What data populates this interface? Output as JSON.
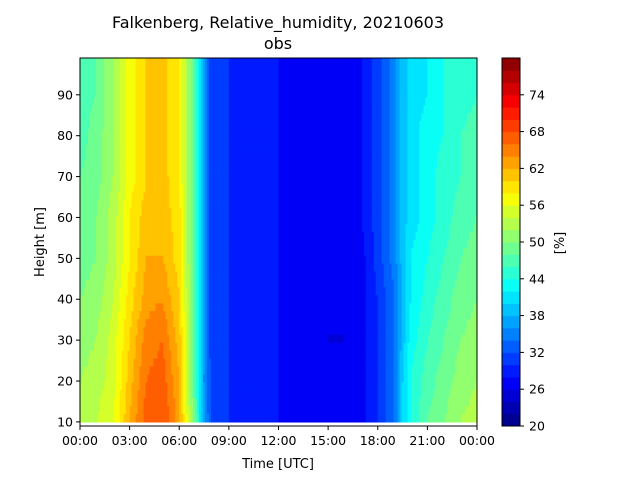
{
  "chart_data": {
    "type": "heatmap",
    "title": "Falkenberg, Relative_humidity, 20210603",
    "subtitle": "obs",
    "xlabel": "Time [UTC]",
    "ylabel": "Height [m]",
    "colorbar_label": "[%]",
    "colormap": "jet",
    "x_tick_labels": [
      "00:00",
      "03:00",
      "06:00",
      "09:00",
      "12:00",
      "15:00",
      "18:00",
      "21:00",
      "00:00"
    ],
    "x_range_hours": [
      0,
      24
    ],
    "y_ticks": [
      10,
      20,
      30,
      40,
      50,
      60,
      70,
      80,
      90
    ],
    "y_range": [
      9,
      99
    ],
    "colorbar_ticks": [
      20,
      26,
      32,
      38,
      44,
      50,
      56,
      62,
      68,
      74
    ],
    "colorbar_range": [
      20,
      80
    ],
    "heights": [
      10,
      20,
      30,
      40,
      50,
      60,
      70,
      80,
      90,
      99
    ],
    "times_hours": [
      0,
      1,
      2,
      3,
      4,
      5,
      6,
      7,
      7.5,
      8,
      9,
      10,
      11,
      12,
      13,
      14,
      15,
      16,
      17,
      18,
      19,
      19.5,
      20,
      21,
      22,
      23,
      24
    ],
    "values": [
      [
        53,
        54,
        56,
        62,
        67,
        68,
        63,
        47,
        37,
        31,
        30,
        29,
        29,
        28,
        27,
        27,
        26,
        26,
        27,
        30,
        34,
        40,
        44,
        48,
        50,
        52,
        53
      ],
      [
        52,
        53,
        55,
        61,
        66,
        67,
        62,
        46,
        36,
        31,
        30,
        29,
        29,
        28,
        27,
        27,
        26,
        26,
        27,
        30,
        34,
        40,
        44,
        47,
        49,
        51,
        52
      ],
      [
        51,
        52,
        55,
        60,
        65,
        66,
        61,
        46,
        36,
        30,
        30,
        29,
        28,
        28,
        27,
        27,
        26,
        26,
        27,
        30,
        34,
        39,
        43,
        46,
        48,
        50,
        51
      ],
      [
        50,
        51,
        54,
        59,
        63,
        64,
        60,
        46,
        36,
        30,
        30,
        29,
        28,
        28,
        27,
        27,
        26,
        26,
        27,
        30,
        34,
        39,
        42,
        45,
        47,
        49,
        50
      ],
      [
        49,
        50,
        53,
        58,
        62,
        62,
        59,
        46,
        36,
        30,
        30,
        29,
        28,
        28,
        27,
        27,
        26,
        26,
        27,
        31,
        35,
        39,
        42,
        44,
        46,
        48,
        49
      ],
      [
        48,
        50,
        53,
        58,
        61,
        61,
        59,
        46,
        36,
        30,
        30,
        29,
        28,
        28,
        27,
        27,
        27,
        27,
        28,
        31,
        35,
        39,
        41,
        43,
        45,
        47,
        48
      ],
      [
        48,
        49,
        52,
        57,
        60,
        61,
        58,
        46,
        36,
        30,
        30,
        29,
        28,
        28,
        27,
        27,
        27,
        27,
        28,
        31,
        35,
        39,
        41,
        43,
        45,
        46,
        47
      ],
      [
        47,
        49,
        52,
        57,
        60,
        61,
        58,
        46,
        36,
        30,
        30,
        29,
        28,
        28,
        27,
        27,
        27,
        27,
        28,
        31,
        35,
        39,
        41,
        43,
        44,
        46,
        47
      ],
      [
        47,
        48,
        52,
        57,
        60,
        61,
        58,
        46,
        36,
        30,
        30,
        29,
        28,
        28,
        27,
        27,
        27,
        27,
        28,
        31,
        35,
        39,
        41,
        42,
        44,
        45,
        46
      ],
      [
        47,
        48,
        52,
        57,
        60,
        61,
        58,
        46,
        36,
        30,
        30,
        29,
        28,
        28,
        27,
        27,
        27,
        27,
        28,
        31,
        35,
        39,
        41,
        42,
        44,
        45,
        46
      ]
    ]
  }
}
